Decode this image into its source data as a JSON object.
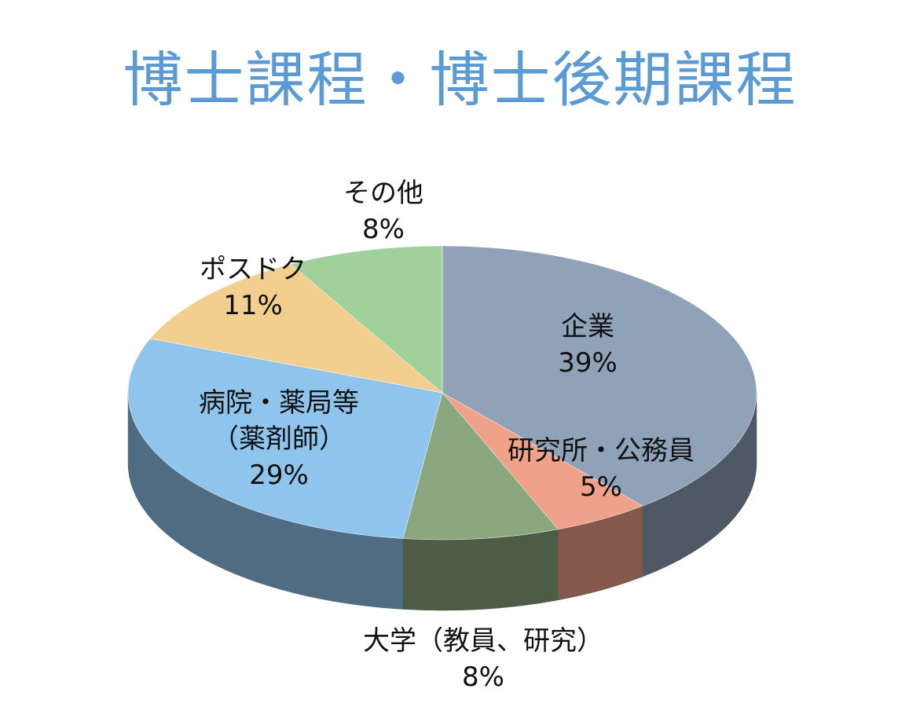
{
  "chart_data": {
    "type": "pie",
    "title": "博士課程・博士後期課程",
    "categories": [
      "企業",
      "研究所・公務員",
      "大学（教員、研究）",
      "病院・薬局等\n（薬剤師）",
      "ポスドク",
      "その他"
    ],
    "values": [
      39,
      5,
      8,
      29,
      11,
      8
    ],
    "value_labels": [
      "39%",
      "5%",
      "8%",
      "29%",
      "11%",
      "8%"
    ],
    "colors": [
      "#8fa2b8",
      "#f0a189",
      "#8ba77f",
      "#8fc4ec",
      "#f3cf8f",
      "#a0d19b"
    ]
  }
}
